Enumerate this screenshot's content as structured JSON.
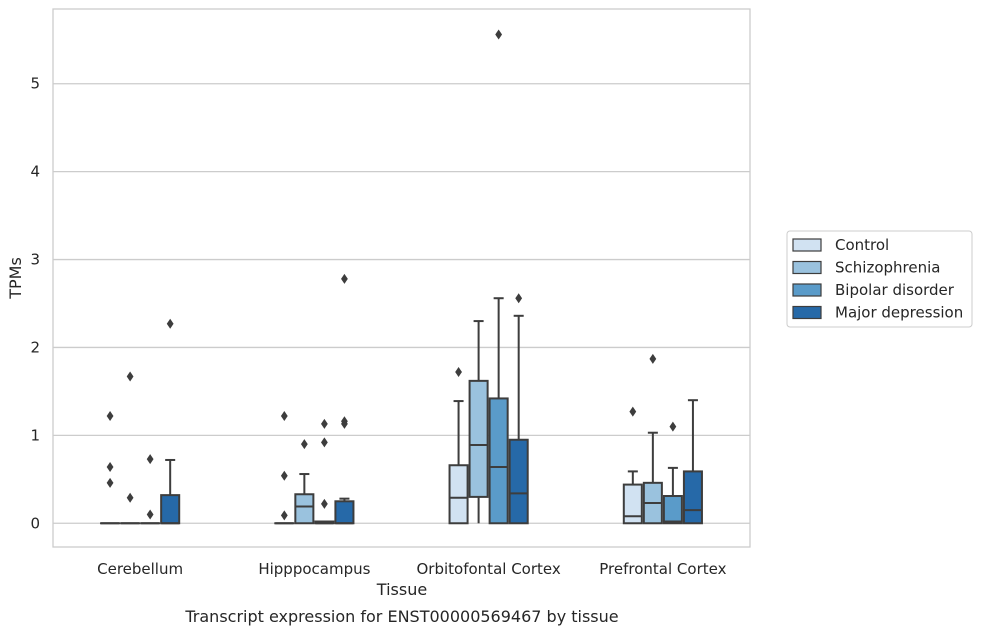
{
  "caption": "Transcript expression for ENST00000569467 by tissue",
  "chart_data": {
    "type": "box",
    "xlabel": "Tissue",
    "ylabel": "TPMs",
    "ylim": [
      -0.27,
      5.85
    ],
    "yticks": [
      0,
      1,
      2,
      3,
      4,
      5
    ],
    "grid": "horizontal",
    "legend_position": "right",
    "categories": [
      "Cerebellum",
      "Hipppocampus",
      "Orbitofontal Cortex",
      "Prefrontal Cortex"
    ],
    "series": [
      {
        "name": "Control",
        "color": "#d1e2f2",
        "boxes": [
          {
            "q1": 0,
            "median": 0,
            "q3": 0,
            "whislo": 0,
            "whishi": 0,
            "fliers": [
              1.22,
              0.64,
              0.46
            ]
          },
          {
            "q1": 0,
            "median": 0,
            "q3": 0,
            "whislo": 0,
            "whishi": 0,
            "fliers": [
              1.22,
              0.54,
              0.09
            ]
          },
          {
            "q1": 0,
            "median": 0.29,
            "q3": 0.66,
            "whislo": 0,
            "whishi": 1.39,
            "fliers": [
              1.72
            ]
          },
          {
            "q1": 0,
            "median": 0.08,
            "q3": 0.44,
            "whislo": 0,
            "whishi": 0.59,
            "fliers": [
              1.27
            ]
          }
        ]
      },
      {
        "name": "Schizophrenia",
        "color": "#9ac2de",
        "boxes": [
          {
            "q1": 0,
            "median": 0,
            "q3": 0,
            "whislo": 0,
            "whishi": 0,
            "fliers": [
              1.67,
              0.29
            ]
          },
          {
            "q1": 0,
            "median": 0.19,
            "q3": 0.33,
            "whislo": 0,
            "whishi": 0.56,
            "fliers": [
              0.9
            ]
          },
          {
            "q1": 0.3,
            "median": 0.89,
            "q3": 1.62,
            "whislo": 0,
            "whishi": 2.3,
            "fliers": []
          },
          {
            "q1": 0,
            "median": 0.23,
            "q3": 0.46,
            "whislo": 0,
            "whishi": 1.03,
            "fliers": [
              1.87
            ]
          }
        ]
      },
      {
        "name": "Bipolar disorder",
        "color": "#5a9bc9",
        "boxes": [
          {
            "q1": 0,
            "median": 0,
            "q3": 0,
            "whislo": 0,
            "whishi": 0,
            "fliers": [
              0.73,
              0.1
            ]
          },
          {
            "q1": 0,
            "median": 0,
            "q3": 0.02,
            "whislo": 0,
            "whishi": 0.02,
            "fliers": [
              1.13,
              0.92,
              0.22
            ]
          },
          {
            "q1": 0,
            "median": 0.64,
            "q3": 1.42,
            "whislo": 0,
            "whishi": 2.56,
            "fliers": [
              5.56
            ]
          },
          {
            "q1": 0,
            "median": 0.02,
            "q3": 0.31,
            "whislo": 0,
            "whishi": 0.63,
            "fliers": [
              1.1
            ]
          }
        ]
      },
      {
        "name": "Major depression",
        "color": "#2669a8",
        "boxes": [
          {
            "q1": 0,
            "median": 0,
            "q3": 0.32,
            "whislo": 0,
            "whishi": 0.72,
            "fliers": [
              2.27
            ]
          },
          {
            "q1": 0,
            "median": 0,
            "q3": 0.25,
            "whislo": 0,
            "whishi": 0.28,
            "fliers": [
              2.78,
              1.16,
              1.13
            ]
          },
          {
            "q1": 0,
            "median": 0.34,
            "q3": 0.95,
            "whislo": 0,
            "whishi": 2.36,
            "fliers": [
              2.56
            ]
          },
          {
            "q1": 0,
            "median": 0.15,
            "q3": 0.59,
            "whislo": 0,
            "whishi": 1.4,
            "fliers": []
          }
        ]
      }
    ]
  }
}
